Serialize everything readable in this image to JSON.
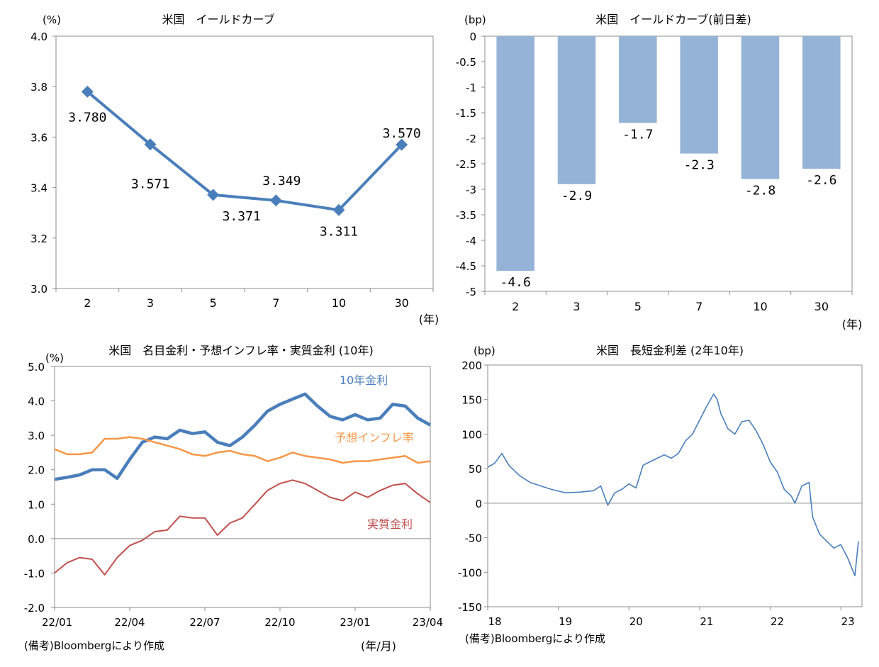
{
  "chart_data": [
    {
      "id": "yield_curve",
      "type": "line",
      "title": "米国　イールドカーブ",
      "unit_label": "(%)",
      "x_unit": "(年)",
      "categories": [
        "2",
        "3",
        "5",
        "7",
        "10",
        "30"
      ],
      "values": [
        3.78,
        3.571,
        3.371,
        3.349,
        3.311,
        3.57
      ],
      "data_labels": [
        "3.780",
        "3.571",
        "3.371",
        "3.349",
        "3.311",
        "3.570"
      ],
      "ylim": [
        3.0,
        4.0
      ],
      "yticks": [
        "3.0",
        "3.2",
        "3.4",
        "3.6",
        "3.8",
        "4.0"
      ],
      "grid": false,
      "color": "#4a7ebb"
    },
    {
      "id": "yield_change",
      "type": "bar",
      "title": "米国　イールドカーブ(前日差)",
      "unit_label": "(bp)",
      "x_unit": "(年)",
      "categories": [
        "2",
        "3",
        "5",
        "7",
        "10",
        "30"
      ],
      "values": [
        -4.6,
        -2.9,
        -1.7,
        -2.3,
        -2.8,
        -2.6
      ],
      "data_labels": [
        "-4.6",
        "-2.9",
        "-1.7",
        "-2.3",
        "-2.8",
        "-2.6"
      ],
      "ylim": [
        -5,
        0
      ],
      "yticks": [
        "0",
        "-0.5",
        "-1",
        "-1.5",
        "-2",
        "-2.5",
        "-3",
        "-3.5",
        "-4",
        "-4.5",
        "-5"
      ],
      "grid": false,
      "color": "#95b3d7"
    },
    {
      "id": "real_rates",
      "type": "line",
      "title": "米国　名目金利・予想インフレ率・実質金利 (10年)",
      "unit_label": "(%)",
      "x_unit": "(年/月)",
      "source_note": "(備考)Bloombergにより作成",
      "xticks": [
        "22/01",
        "22/04",
        "22/07",
        "22/10",
        "23/01",
        "23/04"
      ],
      "yticks": [
        "-2.0",
        "-1.0",
        "0.0",
        "1.0",
        "2.0",
        "3.0",
        "4.0",
        "5.0"
      ],
      "ylim": [
        -2.0,
        5.0
      ],
      "grid": false,
      "series": [
        {
          "name": "10年金利",
          "color": "#4a7ebb",
          "x": [
            "22/01",
            "22/01",
            "22/02",
            "22/02",
            "22/03",
            "22/03",
            "22/04",
            "22/04",
            "22/05",
            "22/05",
            "22/06",
            "22/06",
            "22/07",
            "22/07",
            "22/08",
            "22/08",
            "22/09",
            "22/09",
            "22/10",
            "22/10",
            "22/11",
            "22/11",
            "22/12",
            "22/12",
            "23/01",
            "23/01",
            "23/02",
            "23/02",
            "23/03",
            "23/03",
            "23/04"
          ],
          "values": [
            1.72,
            1.78,
            1.85,
            2.0,
            2.0,
            1.75,
            2.3,
            2.8,
            2.95,
            2.9,
            3.15,
            3.05,
            3.1,
            2.8,
            2.7,
            2.95,
            3.3,
            3.7,
            3.9,
            4.05,
            4.2,
            3.85,
            3.55,
            3.45,
            3.6,
            3.45,
            3.5,
            3.9,
            3.85,
            3.5,
            3.3
          ]
        },
        {
          "name": "予想インフレ率",
          "color": "#f79646",
          "x": [
            "22/01",
            "22/01",
            "22/02",
            "22/02",
            "22/03",
            "22/03",
            "22/04",
            "22/04",
            "22/05",
            "22/05",
            "22/06",
            "22/06",
            "22/07",
            "22/07",
            "22/08",
            "22/08",
            "22/09",
            "22/09",
            "22/10",
            "22/10",
            "22/11",
            "22/11",
            "22/12",
            "22/12",
            "23/01",
            "23/01",
            "23/02",
            "23/02",
            "23/03",
            "23/03",
            "23/04"
          ],
          "values": [
            2.6,
            2.45,
            2.45,
            2.5,
            2.9,
            2.9,
            2.95,
            2.9,
            2.8,
            2.7,
            2.6,
            2.45,
            2.4,
            2.5,
            2.55,
            2.45,
            2.4,
            2.25,
            2.35,
            2.5,
            2.4,
            2.35,
            2.3,
            2.2,
            2.25,
            2.25,
            2.3,
            2.35,
            2.4,
            2.2,
            2.25
          ]
        },
        {
          "name": "実質金利",
          "color": "#c0504d",
          "x": [
            "22/01",
            "22/01",
            "22/02",
            "22/02",
            "22/03",
            "22/03",
            "22/04",
            "22/04",
            "22/05",
            "22/05",
            "22/06",
            "22/06",
            "22/07",
            "22/07",
            "22/08",
            "22/08",
            "22/09",
            "22/09",
            "22/10",
            "22/10",
            "22/11",
            "22/11",
            "22/12",
            "22/12",
            "23/01",
            "23/01",
            "23/02",
            "23/02",
            "23/03",
            "23/03",
            "23/04"
          ],
          "values": [
            -1.0,
            -0.7,
            -0.55,
            -0.6,
            -1.05,
            -0.55,
            -0.2,
            -0.05,
            0.2,
            0.25,
            0.65,
            0.6,
            0.6,
            0.1,
            0.45,
            0.6,
            1.0,
            1.4,
            1.6,
            1.7,
            1.6,
            1.4,
            1.2,
            1.1,
            1.35,
            1.2,
            1.4,
            1.55,
            1.6,
            1.3,
            1.05
          ]
        }
      ]
    },
    {
      "id": "term_spread",
      "type": "line",
      "title": "米国　長短金利差 (2年10年)",
      "unit_label": "(bp)",
      "source_note": "(備考)Bloombergにより作成",
      "xticks": [
        "18",
        "19",
        "20",
        "21",
        "22",
        "23"
      ],
      "yticks": [
        "-150",
        "-100",
        "-50",
        "0",
        "50",
        "100",
        "150",
        "200"
      ],
      "ylim": [
        -150,
        200
      ],
      "grid": false,
      "color": "#4a7ebb",
      "x": [
        2018.0,
        2018.1,
        2018.2,
        2018.3,
        2018.45,
        2018.6,
        2018.75,
        2018.9,
        2019.1,
        2019.3,
        2019.5,
        2019.6,
        2019.7,
        2019.8,
        2019.9,
        2020.0,
        2020.1,
        2020.2,
        2020.3,
        2020.4,
        2020.5,
        2020.6,
        2020.7,
        2020.8,
        2020.9,
        2021.0,
        2021.1,
        2021.2,
        2021.25,
        2021.3,
        2021.4,
        2021.5,
        2021.6,
        2021.7,
        2021.8,
        2021.9,
        2022.0,
        2022.1,
        2022.2,
        2022.3,
        2022.35,
        2022.45,
        2022.55,
        2022.6,
        2022.7,
        2022.8,
        2022.9,
        2023.0,
        2023.1,
        2023.2,
        2023.25
      ],
      "values": [
        52,
        58,
        72,
        55,
        40,
        30,
        25,
        20,
        15,
        16,
        18,
        25,
        -3,
        15,
        20,
        28,
        22,
        55,
        60,
        65,
        70,
        65,
        72,
        90,
        100,
        120,
        140,
        158,
        150,
        130,
        108,
        100,
        118,
        120,
        105,
        85,
        60,
        45,
        20,
        10,
        0,
        25,
        30,
        -20,
        -45,
        -55,
        -65,
        -60,
        -80,
        -105,
        -55
      ]
    }
  ]
}
